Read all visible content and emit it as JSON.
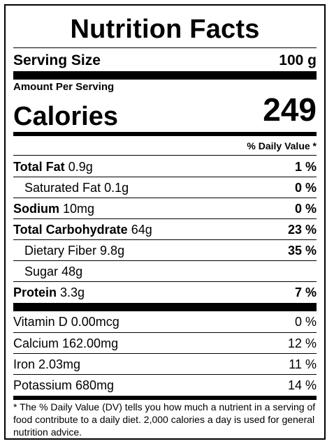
{
  "title": "Nutrition Facts",
  "serving": {
    "label": "Serving Size",
    "value": "100 g"
  },
  "amount_per_serving": "Amount Per Serving",
  "calories": {
    "label": "Calories",
    "value": "249"
  },
  "daily_value_header": "% Daily Value *",
  "nutrients": [
    {
      "name": "Total Fat",
      "amount": "0.9g",
      "dv": "1 %"
    },
    {
      "name": "Saturated Fat",
      "amount": "0.1g",
      "dv": "0 %"
    },
    {
      "name": "Sodium",
      "amount": "10mg",
      "dv": "0 %"
    },
    {
      "name": "Total Carbohydrate",
      "amount": "64g",
      "dv": "23 %"
    },
    {
      "name": "Dietary Fiber",
      "amount": "9.8g",
      "dv": "35 %"
    },
    {
      "name": "Sugar",
      "amount": "48g",
      "dv": ""
    },
    {
      "name": "Protein",
      "amount": "3.3g",
      "dv": "7 %"
    }
  ],
  "vitamins": [
    {
      "text": "Vitamin D 0.00mcg",
      "dv": "0 %"
    },
    {
      "text": "Calcium 162.00mg",
      "dv": "12 %"
    },
    {
      "text": "Iron 2.03mg",
      "dv": "11 %"
    },
    {
      "text": "Potassium 680mg",
      "dv": "14 %"
    }
  ],
  "footnote": "* The % Daily Value (DV) tells you how much a nutrient in a serving of food contribute to a daily diet. 2,000 calories a day is used for general nutrition advice."
}
